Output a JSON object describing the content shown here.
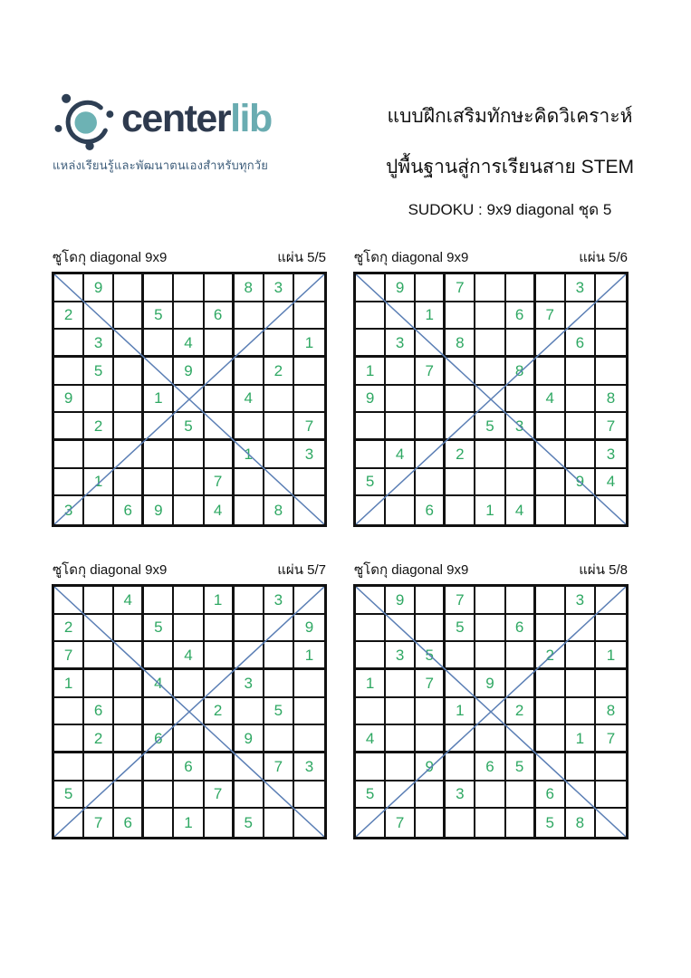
{
  "logo": {
    "text_dark": "center",
    "text_teal": "lib",
    "tagline": "แหล่งเรียนรู้และพัฒนาตนเองสำหรับทุกวัย",
    "dark_color": "#2e3a4e",
    "teal_color": "#6aacb1"
  },
  "header": {
    "line1": "แบบฝึกเสริมทักษะคิดวิเคราะห์",
    "line2": "ปูพื้นฐานสู่การเรียนสาย STEM",
    "line3": "SUDOKU : 9x9 diagonal ชุด 5"
  },
  "colors": {
    "digit_green": "#2fa863",
    "diagonal_blue": "#5b7fb5",
    "grid_line": "#111111"
  },
  "grids": [
    {
      "title": "ซูโดกุ diagonal 9x9",
      "sheet": "แผ่น 5/5",
      "rows": [
        ".9....83.",
        "2..5.6...",
        ".3..4...1",
        ".5..9..2.",
        "9..1..4..",
        ".2..5...7",
        "......1.3",
        ".1...7...",
        "3.69.4.8."
      ]
    },
    {
      "title": "ซูโดกุ diagonal 9x9",
      "sheet": "แผ่น 5/6",
      "rows": [
        ".9.7...3.",
        "..1..67..",
        ".3.8...6.",
        "1.7..8...",
        "9.....4.8",
        "....53..7",
        ".4.2....3",
        "5......94",
        "..6.14..."
      ]
    },
    {
      "title": "ซูโดกุ diagonal 9x9",
      "sheet": "แผ่น 5/7",
      "rows": [
        "..4..1.3.",
        "2..5....9",
        "7...4...1",
        "1..4..3..",
        ".6...2.5.",
        ".2.6..9..",
        "....6..73",
        "5....7...",
        ".76.1.5.."
      ]
    },
    {
      "title": "ซูโดกุ diagonal 9x9",
      "sheet": "แผ่น 5/8",
      "rows": [
        ".9.7...3.",
        "...5.6...",
        ".35...2.1",
        "1.7.9....",
        "...1.2..8",
        "4......17",
        "..9.65...",
        "5..3..6..",
        ".7....58."
      ]
    }
  ]
}
